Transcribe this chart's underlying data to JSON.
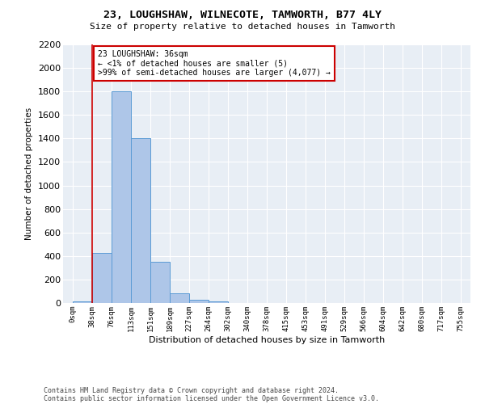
{
  "title1": "23, LOUGHSHAW, WILNECOTE, TAMWORTH, B77 4LY",
  "title2": "Size of property relative to detached houses in Tamworth",
  "xlabel": "Distribution of detached houses by size in Tamworth",
  "ylabel": "Number of detached properties",
  "footer1": "Contains HM Land Registry data © Crown copyright and database right 2024.",
  "footer2": "Contains public sector information licensed under the Open Government Licence v3.0.",
  "annotation_line1": "23 LOUGHSHAW: 36sqm",
  "annotation_line2": "← <1% of detached houses are smaller (5)",
  "annotation_line3": ">99% of semi-detached houses are larger (4,077) →",
  "bar_values": [
    15,
    425,
    1800,
    1400,
    350,
    80,
    30,
    15,
    0,
    0,
    0,
    0,
    0,
    0,
    0,
    0,
    0,
    0,
    0,
    0
  ],
  "bin_labels": [
    "0sqm",
    "38sqm",
    "76sqm",
    "113sqm",
    "151sqm",
    "189sqm",
    "227sqm",
    "264sqm",
    "302sqm",
    "340sqm",
    "378sqm",
    "415sqm",
    "453sqm",
    "491sqm",
    "529sqm",
    "566sqm",
    "604sqm",
    "642sqm",
    "680sqm",
    "717sqm",
    "755sqm"
  ],
  "bar_color": "#aec6e8",
  "bar_edge_color": "#5b9bd5",
  "annotation_line_color": "#cc0000",
  "annotation_box_color": "#cc0000",
  "background_color": "#e8eef5",
  "ylim": [
    0,
    2200
  ],
  "yticks": [
    0,
    200,
    400,
    600,
    800,
    1000,
    1200,
    1400,
    1600,
    1800,
    2000,
    2200
  ],
  "n_bins": 20,
  "bin_width": 37.85
}
